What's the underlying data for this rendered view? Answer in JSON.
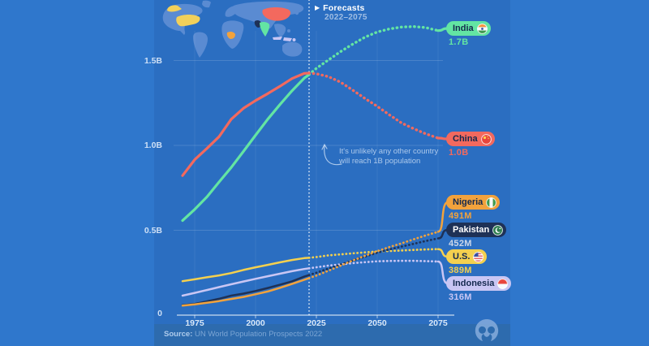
{
  "colors": {
    "background": "#2f77cc",
    "panel": "#2b6ec1",
    "footer_bar": "#2d6bae",
    "axis_line": "rgba(255,255,255,0.75)",
    "gridline": "rgba(255,255,255,0.15)",
    "forecast_divider": "rgba(255,255,255,0.9)"
  },
  "map": {
    "region_colors": {
      "land": "#5a8bd2",
      "united_states": "#f2d05a",
      "china": "#f3695e",
      "india": "#63e5a3",
      "pakistan": "#1e3156",
      "nigeria": "#f2a23c",
      "indonesia": "#c9c6f4"
    }
  },
  "forecast": {
    "marker": "▶",
    "label": "Forecasts",
    "range": "2022–2075",
    "start_year": 2022
  },
  "annotation": {
    "line1": "It's unlikely any other country",
    "line2": "will reach 1B population"
  },
  "axes": {
    "x_ticks": [
      {
        "label": "1975",
        "year": 1975
      },
      {
        "label": "2000",
        "year": 2000
      },
      {
        "label": "2025",
        "year": 2025
      },
      {
        "label": "2050",
        "year": 2050
      },
      {
        "label": "2075",
        "year": 2075
      }
    ],
    "y_ticks": [
      {
        "label": "0",
        "value": 0
      },
      {
        "label": "0.5B",
        "value": 0.5
      },
      {
        "label": "1.0B",
        "value": 1.0
      },
      {
        "label": "1.5B",
        "value": 1.5
      }
    ]
  },
  "source": {
    "prefix": "Source:",
    "text": " UN World Population Prospects 2022"
  },
  "logo_name": "visual-capitalist-logo",
  "chart_data": {
    "type": "line",
    "title": "Population of the six most populous countries, history and UN forecast to 2075",
    "xlim": [
      1970,
      2075
    ],
    "ylim_billions": [
      0,
      1.75
    ],
    "forecast_from": 2022,
    "grid": "faint",
    "x": [
      1970,
      1975,
      1980,
      1985,
      1990,
      1995,
      2000,
      2005,
      2010,
      2015,
      2020,
      2022,
      2025,
      2030,
      2035,
      2040,
      2045,
      2050,
      2055,
      2060,
      2065,
      2070,
      2075
    ],
    "series": [
      {
        "name": "India",
        "flag": "india",
        "callout_value": "1.7B",
        "color": "#63e5a3",
        "pill_bg": "#63e5a3",
        "pill_text": "#14294e",
        "value_color": "#63e5a3",
        "values_millions": [
          557,
          623,
          696,
          784,
          870,
          964,
          1060,
          1154,
          1240,
          1322,
          1396,
          1417,
          1454,
          1504,
          1553,
          1597,
          1638,
          1668,
          1686,
          1697,
          1700,
          1694,
          1676
        ]
      },
      {
        "name": "China",
        "flag": "china",
        "callout_value": "1.0B",
        "color": "#f3695e",
        "pill_bg": "#f3695e",
        "pill_text": "#14294e",
        "value_color": "#f3695e",
        "values_millions": [
          822,
          916,
          982,
          1051,
          1154,
          1218,
          1264,
          1305,
          1348,
          1394,
          1424,
          1426,
          1422,
          1405,
          1372,
          1325,
          1276,
          1230,
          1180,
          1132,
          1098,
          1068,
          1043
        ]
      },
      {
        "name": "Nigeria",
        "flag": "nigeria",
        "callout_value": "491M",
        "color": "#f2a23c",
        "pill_bg": "#f2a23c",
        "pill_text": "#14294e",
        "value_color": "#f2a23c",
        "values_millions": [
          56,
          63,
          73,
          83,
          95,
          107,
          123,
          139,
          161,
          184,
          208,
          218,
          233,
          262,
          292,
          322,
          350,
          377,
          401,
          423,
          447,
          470,
          491
        ]
      },
      {
        "name": "Pakistan",
        "flag": "pakistan",
        "callout_value": "452M",
        "color": "#1e3156",
        "pill_bg": "#1e3156",
        "pill_text": "#ffffff",
        "value_color": "#ccd7ea",
        "values_millions": [
          59,
          66,
          81,
          96,
          115,
          127,
          142,
          160,
          179,
          199,
          227,
          236,
          250,
          274,
          298,
          322,
          345,
          368,
          387,
          404,
          420,
          437,
          452
        ]
      },
      {
        "name": "U.S.",
        "flag": "us",
        "callout_value": "389M",
        "color": "#f4d04f",
        "pill_bg": "#f4d04f",
        "pill_text": "#14294e",
        "value_color": "#f4d04f",
        "values_millions": [
          200,
          211,
          223,
          234,
          248,
          266,
          282,
          296,
          311,
          325,
          336,
          338,
          342,
          352,
          358,
          364,
          370,
          375,
          378,
          381,
          384,
          387,
          389
        ]
      },
      {
        "name": "Indonesia",
        "flag": "indonesia",
        "callout_value": "316M",
        "color": "#c9c6f4",
        "pill_bg": "#c9c6f4",
        "pill_text": "#14294e",
        "value_color": "#c9c6f4",
        "values_millions": [
          115,
          131,
          148,
          165,
          182,
          198,
          214,
          229,
          244,
          259,
          272,
          276,
          282,
          292,
          299,
          306,
          312,
          317,
          319,
          320,
          320,
          318,
          316
        ]
      }
    ]
  }
}
